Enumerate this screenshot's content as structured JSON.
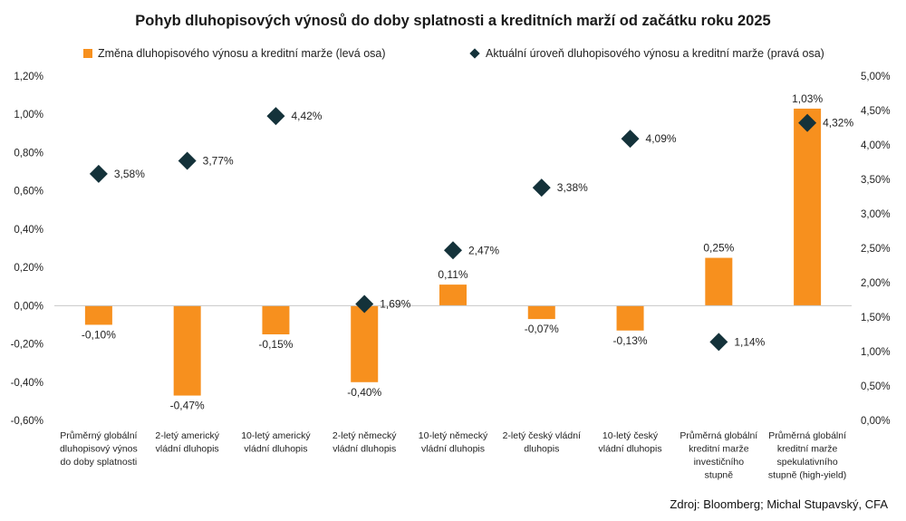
{
  "title": "Pohyb dluhopisových výnosů do doby splatnosti a kreditních marží od začátku roku 2025",
  "source": "Zdroj: Bloomberg; Michal Stupavský, CFA",
  "colors": {
    "bar": "#f7901e",
    "marker": "#14323a",
    "axis": "#c8c8c8"
  },
  "chart_data": {
    "type": "bar",
    "categories": [
      [
        "Průměrný globální",
        "dluhopisový výnos",
        "do doby splatnosti"
      ],
      [
        "2-letý americký",
        "vládní dluhopis"
      ],
      [
        "10-letý americký",
        "vládní dluhopis"
      ],
      [
        "2-letý německý",
        "vládní dluhopis"
      ],
      [
        "10-letý německý",
        "vládní dluhopis"
      ],
      [
        "2-letý český vládní",
        "dluhopis"
      ],
      [
        "10-letý český",
        "vládní dluhopis"
      ],
      [
        "Průměrná globální",
        "kreditní marže",
        "investičního",
        "stupně"
      ],
      [
        "Průměrná globální",
        "kreditní marže",
        "spekulativního",
        "stupně (high-yield)"
      ]
    ],
    "series": [
      {
        "name": "Změna dluhopisového výnosu a kreditní marže (levá osa)",
        "type": "bar",
        "axis": "left",
        "values": [
          -0.1,
          -0.47,
          -0.15,
          -0.4,
          0.11,
          -0.07,
          -0.13,
          0.25,
          1.03
        ],
        "labels": [
          "-0,10%",
          "-0,47%",
          "-0,15%",
          "-0,40%",
          "0,11%",
          "-0,07%",
          "-0,13%",
          "0,25%",
          "1,03%"
        ]
      },
      {
        "name": "Aktuální úroveň dluhopisového výnosu a kreditní marže (pravá osa)",
        "type": "scatter",
        "marker": "diamond",
        "axis": "right",
        "values": [
          3.58,
          3.77,
          4.42,
          1.69,
          2.47,
          3.38,
          4.09,
          1.14,
          4.32
        ],
        "labels": [
          "3,58%",
          "3,77%",
          "4,42%",
          "1,69%",
          "2,47%",
          "3,38%",
          "4,09%",
          "1,14%",
          "4,32%"
        ]
      }
    ],
    "left_axis": {
      "range": [
        -0.6,
        1.2
      ],
      "ticks": [
        1.2,
        1.0,
        0.8,
        0.6,
        0.4,
        0.2,
        0.0,
        -0.2,
        -0.4,
        -0.6
      ],
      "tick_labels": [
        "1,20%",
        "1,00%",
        "0,80%",
        "0,60%",
        "0,40%",
        "0,20%",
        "0,00%",
        "-0,20%",
        "-0,40%",
        "-0,60%"
      ]
    },
    "right_axis": {
      "range": [
        0.0,
        5.0
      ],
      "ticks": [
        5.0,
        4.5,
        4.0,
        3.5,
        3.0,
        2.5,
        2.0,
        1.5,
        1.0,
        0.5,
        0.0
      ],
      "tick_labels": [
        "5,00%",
        "4,50%",
        "4,00%",
        "3,50%",
        "3,00%",
        "2,50%",
        "2,00%",
        "1,50%",
        "1,00%",
        "0,50%",
        "0,00%"
      ]
    },
    "grid": false,
    "legend_position": "top"
  }
}
